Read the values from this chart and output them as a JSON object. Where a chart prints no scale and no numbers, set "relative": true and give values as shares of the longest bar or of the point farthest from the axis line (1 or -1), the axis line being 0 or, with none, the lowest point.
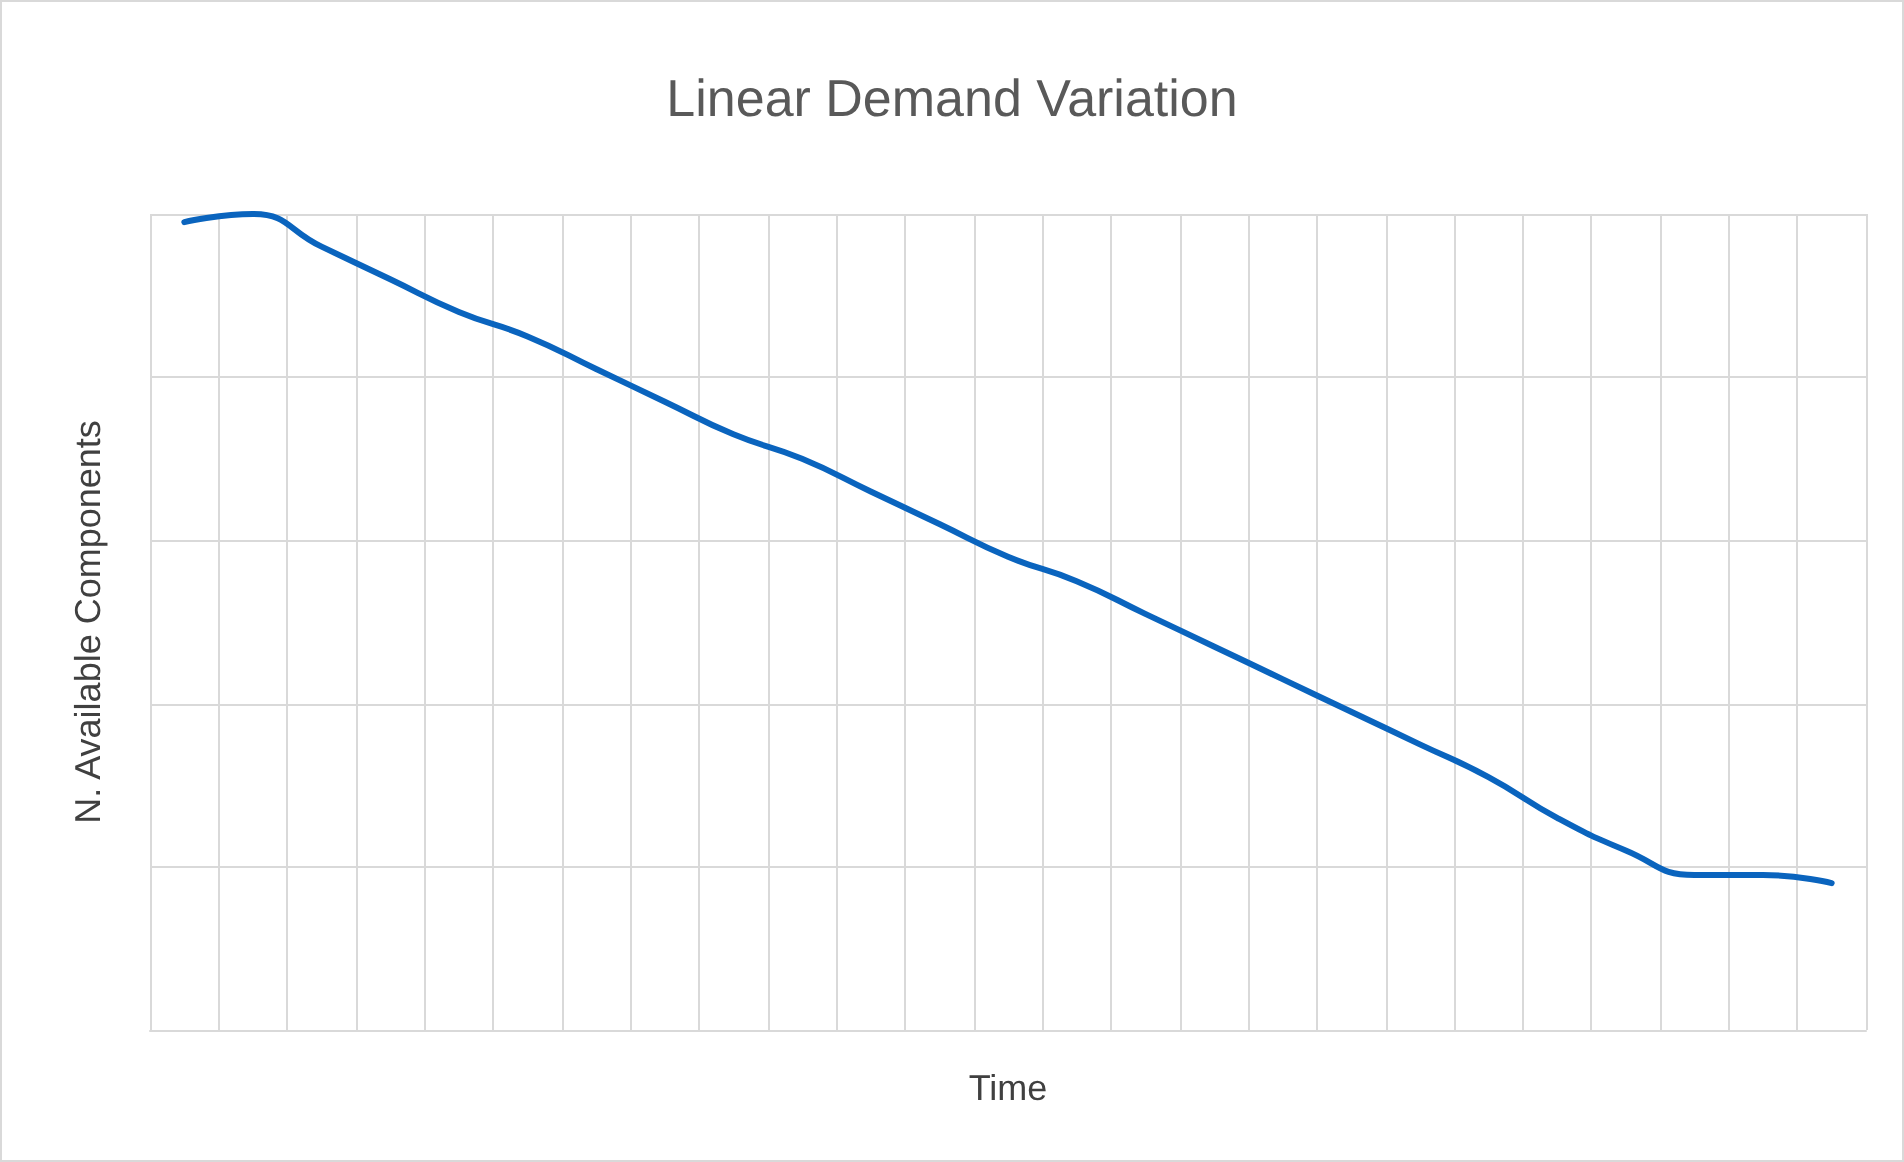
{
  "chart_data": {
    "type": "line",
    "title": "Linear Demand Variation",
    "xlabel": "Time",
    "ylabel": "N. Available Components",
    "relative": true,
    "grid": true,
    "marker": "none",
    "line_style": "solid",
    "categories": [
      null,
      null,
      null,
      null,
      null,
      null,
      null,
      null,
      null,
      null,
      null,
      null,
      null,
      null,
      null,
      null,
      null,
      null,
      null,
      null,
      null,
      null,
      null,
      null,
      null
    ],
    "series": [
      {
        "color": "#0a64be",
        "values": [
          0.99,
          1,
          0.96,
          0.92,
          0.88,
          0.85,
          0.81,
          0.77,
          0.73,
          0.7,
          0.66,
          0.62,
          0.58,
          0.55,
          0.51,
          0.47,
          0.43,
          0.39,
          0.35,
          0.31,
          0.26,
          0.22,
          0.19,
          0.19,
          0.18
        ]
      }
    ]
  }
}
